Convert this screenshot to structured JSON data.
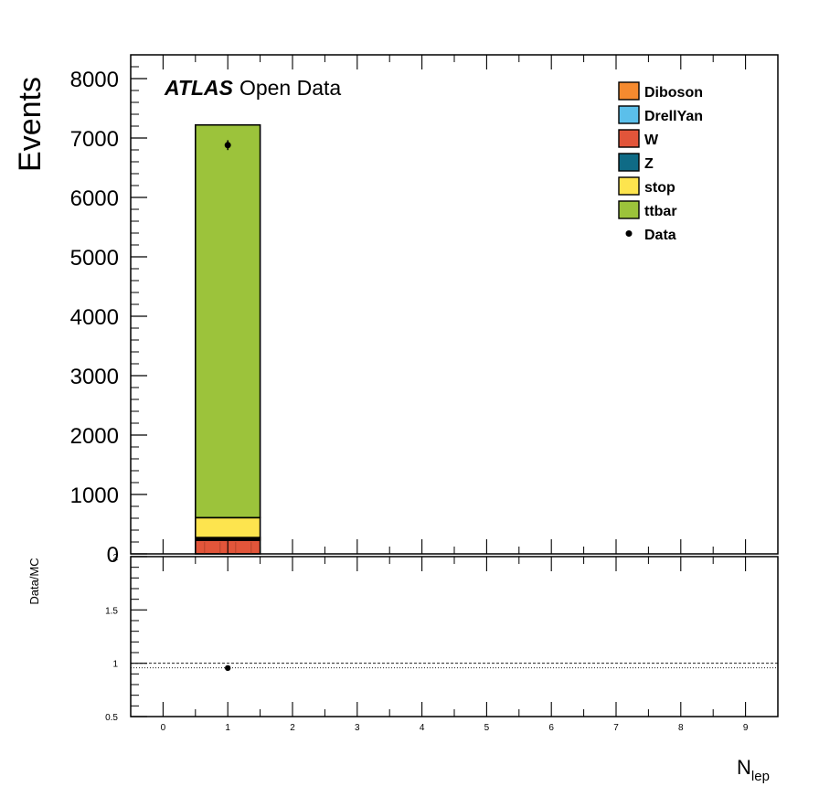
{
  "chart_data": {
    "type": "bar",
    "main": {
      "ylabel": "Events",
      "ylim": [
        0,
        8400
      ],
      "yticks": [
        "0",
        "1000",
        "2000",
        "3000",
        "4000",
        "5000",
        "6000",
        "7000",
        "8000"
      ],
      "ytick_values": [
        0,
        1000,
        2000,
        3000,
        4000,
        5000,
        6000,
        7000,
        8000
      ],
      "xlim": [
        -0.5,
        9.5
      ],
      "stacked": true,
      "bin": {
        "low": 0.5,
        "high": 1.5
      },
      "series": [
        {
          "name": "W",
          "color": "#e2553a",
          "value": 230
        },
        {
          "name": "Z",
          "color": "#0f6b86",
          "value": 20
        },
        {
          "name": "Diboson",
          "color": "#f58a2f",
          "value": 20
        },
        {
          "name": "DrellYan",
          "color": "#5bbfea",
          "value": 5
        },
        {
          "name": "stop",
          "color": "#fde44e",
          "value": 335
        },
        {
          "name": "ttbar",
          "color": "#9cc33b",
          "value": 6610
        }
      ],
      "data": [
        {
          "x": 1,
          "y": 6880,
          "err": 83
        }
      ]
    },
    "ratio": {
      "ylabel": "Data/MC",
      "ylim": [
        0.5,
        2
      ],
      "yticks": [
        "0.5",
        "1",
        "1.5",
        "2"
      ],
      "ytick_values": [
        0.5,
        1,
        1.5,
        2
      ],
      "reference_line": 1,
      "points": [
        {
          "x": 1,
          "y": 0.955
        }
      ]
    },
    "xticks": [
      "0",
      "1",
      "2",
      "3",
      "4",
      "5",
      "6",
      "7",
      "8",
      "9"
    ],
    "xtick_values": [
      0,
      1,
      2,
      3,
      4,
      5,
      6,
      7,
      8,
      9
    ],
    "xlabel_main": "N",
    "xlabel_sub": "lep",
    "legend": {
      "placement": "top-right",
      "entries": [
        {
          "label": "Diboson",
          "color": "#f58a2f",
          "kind": "box"
        },
        {
          "label": "DrellYan",
          "color": "#5bbfea",
          "kind": "box"
        },
        {
          "label": "W",
          "color": "#e2553a",
          "kind": "box"
        },
        {
          "label": "Z",
          "color": "#0f6b86",
          "kind": "box"
        },
        {
          "label": "stop",
          "color": "#fde44e",
          "kind": "box"
        },
        {
          "label": "ttbar",
          "color": "#9cc33b",
          "kind": "box"
        },
        {
          "label": "Data",
          "color": "#000000",
          "kind": "marker"
        }
      ]
    },
    "annotation": {
      "bold": "ATLAS",
      "rest": "Open Data"
    }
  }
}
